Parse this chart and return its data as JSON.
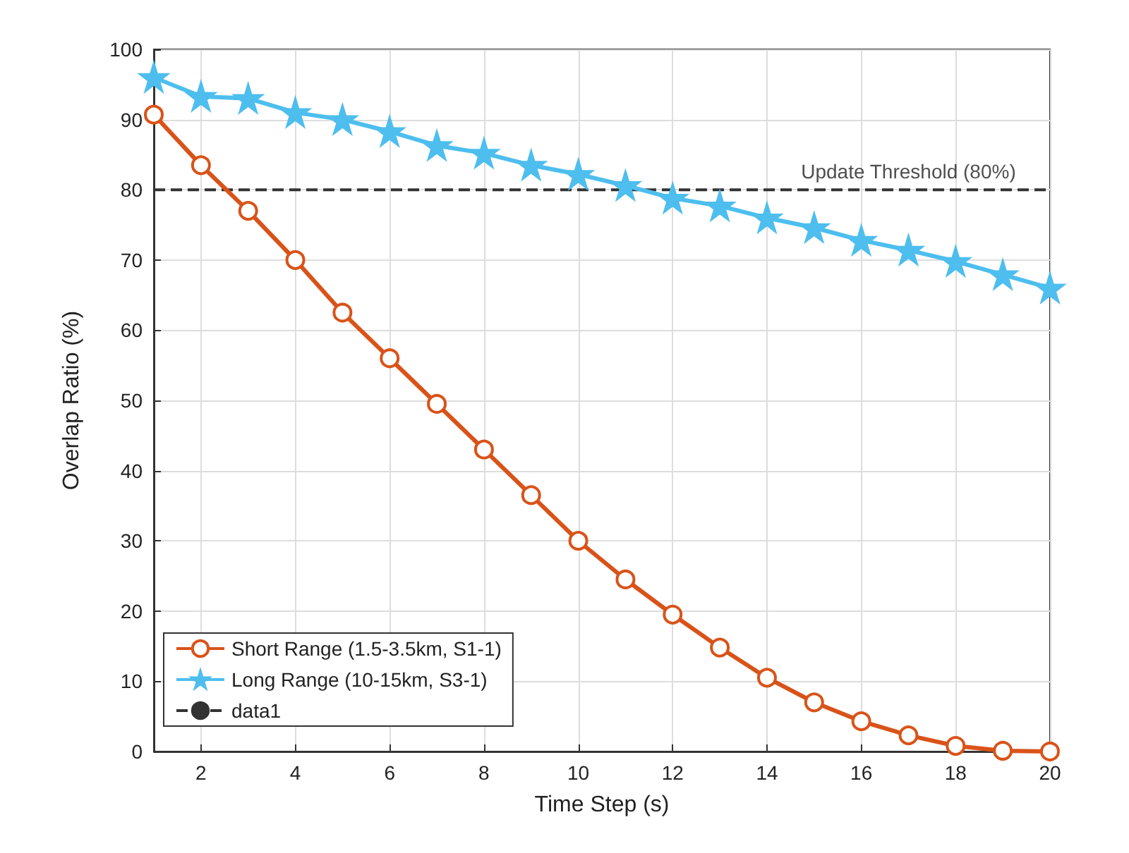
{
  "chart_data": {
    "type": "line",
    "xlabel": "Time Step (s)",
    "ylabel": "Overlap Ratio (%)",
    "x": [
      1,
      2,
      3,
      4,
      5,
      6,
      7,
      8,
      9,
      10,
      11,
      12,
      13,
      14,
      15,
      16,
      17,
      18,
      19,
      20
    ],
    "series": [
      {
        "name": "Short Range (1.5-3.5km, S1-1)",
        "color": "#d95319",
        "marker": "circle",
        "values": [
          90.7,
          83.5,
          77,
          70,
          62.5,
          56,
          49.5,
          43,
          36.5,
          30,
          24.5,
          19.5,
          14.8,
          10.5,
          7,
          4.3,
          2.3,
          0.8,
          0.1,
          0
        ]
      },
      {
        "name": "Long Range (10-15km, S3-1)",
        "color": "#4dbeee",
        "marker": "star",
        "values": [
          96,
          93.3,
          93,
          91,
          90,
          88.3,
          86.3,
          85.2,
          83.5,
          82.2,
          80.6,
          78.8,
          77.7,
          76,
          74.6,
          72.8,
          71.4,
          69.8,
          67.9,
          66
        ]
      },
      {
        "name": "data1",
        "color": "#333333",
        "marker": "none",
        "line_style": "dashed",
        "x": [
          1,
          20
        ],
        "values": [
          80,
          80
        ]
      }
    ],
    "annotations": [
      {
        "text": "Update Threshold (80%)",
        "x": 17,
        "y": 80
      }
    ],
    "xlim": [
      1,
      20
    ],
    "xticks": [
      2,
      4,
      6,
      8,
      10,
      12,
      14,
      16,
      18,
      20
    ],
    "ylim": [
      0,
      100
    ],
    "yticks": [
      0,
      10,
      20,
      30,
      40,
      50,
      60,
      70,
      80,
      90,
      100
    ],
    "grid": true,
    "legend": "bottom left"
  }
}
